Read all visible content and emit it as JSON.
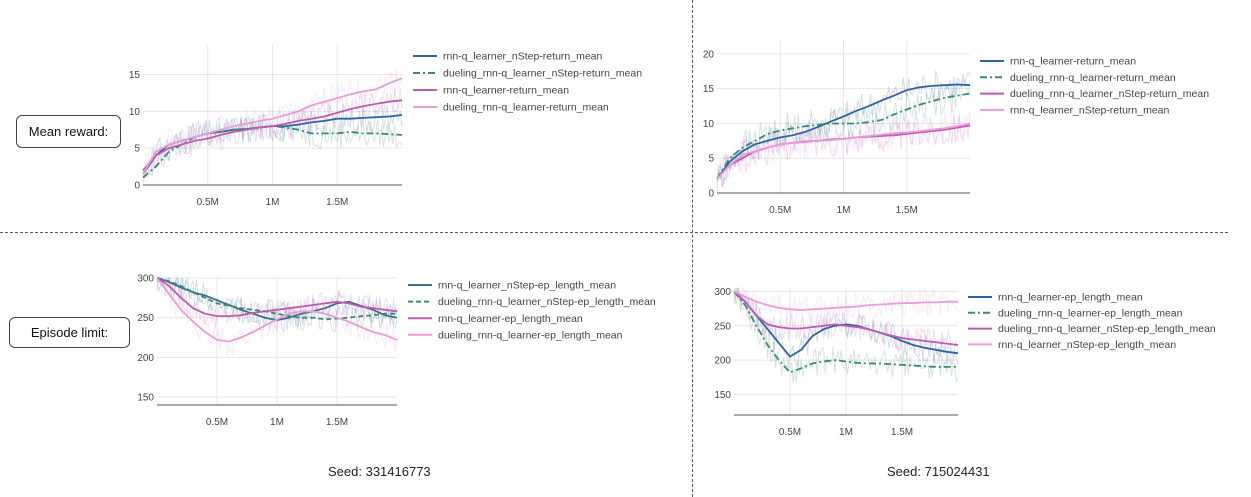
{
  "row_labels": {
    "reward": "Mean reward:",
    "episode": "Episode limit:"
  },
  "seeds": {
    "left": "Seed: 331416773",
    "right": "Seed: 715024431"
  },
  "chart_data": [
    {
      "type": "line",
      "title": "",
      "xlabel": "",
      "ylabel": "",
      "xlim": [
        0,
        2000000
      ],
      "ylim": [
        0,
        19
      ],
      "yticks": [
        0,
        5,
        10,
        15
      ],
      "xticks": [
        500000,
        1000000,
        1500000
      ],
      "xtick_labels": [
        "0.5M",
        "1M",
        "1.5M"
      ],
      "legend_position": "right",
      "series": [
        {
          "name": "rnn-q_learner_nStep-return_mean",
          "color": "#2e64a6",
          "dash": "solid",
          "x": [
            0,
            100000,
            200000,
            300000,
            400000,
            500000,
            600000,
            700000,
            800000,
            900000,
            1000000,
            1100000,
            1200000,
            1300000,
            1400000,
            1500000,
            1600000,
            1700000,
            1800000,
            1900000,
            2000000
          ],
          "y": [
            1.5,
            4,
            5.5,
            6,
            6.5,
            7,
            7.2,
            7.5,
            7.6,
            7.8,
            8,
            8,
            8.2,
            8.5,
            8.7,
            9,
            9,
            9.1,
            9.2,
            9.3,
            9.5
          ]
        },
        {
          "name": "dueling_rnn-q_learner_nStep-return_mean",
          "color": "#3a8a74",
          "dash": "dashdot",
          "x": [
            0,
            100000,
            200000,
            300000,
            400000,
            500000,
            600000,
            700000,
            800000,
            900000,
            1000000,
            1100000,
            1200000,
            1300000,
            1400000,
            1500000,
            1600000,
            1700000,
            1800000,
            1900000,
            2000000
          ],
          "y": [
            1,
            2.5,
            4.5,
            5.5,
            6.5,
            7,
            7.2,
            7.5,
            7.6,
            7.8,
            8,
            7.8,
            7.5,
            7,
            7,
            7,
            7.2,
            7,
            7,
            6.9,
            6.8
          ]
        },
        {
          "name": "rnn-q_learner-return_mean",
          "color": "#c05bb0",
          "dash": "solid",
          "x": [
            0,
            100000,
            200000,
            300000,
            400000,
            500000,
            600000,
            700000,
            800000,
            900000,
            1000000,
            1100000,
            1200000,
            1300000,
            1400000,
            1500000,
            1600000,
            1700000,
            1800000,
            1900000,
            2000000
          ],
          "y": [
            2,
            4,
            5,
            5.5,
            6,
            6.3,
            6.8,
            7.2,
            7.5,
            7.8,
            8,
            8.3,
            8.7,
            9,
            9.3,
            9.8,
            10.3,
            10.7,
            11,
            11.3,
            11.5
          ]
        },
        {
          "name": "dueling_rnn-q_learner-return_mean",
          "color": "#ec9bd9",
          "dash": "solid",
          "x": [
            0,
            100000,
            200000,
            300000,
            400000,
            500000,
            600000,
            700000,
            800000,
            900000,
            1000000,
            1100000,
            1200000,
            1300000,
            1400000,
            1500000,
            1600000,
            1700000,
            1800000,
            1900000,
            2000000
          ],
          "y": [
            1.5,
            4.5,
            5.5,
            6,
            6.5,
            7,
            7.5,
            8,
            8.3,
            8.7,
            9,
            9.5,
            10,
            10.8,
            11.3,
            11.8,
            12.3,
            12.7,
            13,
            13.8,
            14.5
          ]
        }
      ]
    },
    {
      "type": "line",
      "title": "",
      "xlabel": "",
      "ylabel": "",
      "xlim": [
        0,
        2000000
      ],
      "ylim": [
        0,
        22
      ],
      "yticks": [
        0,
        5,
        10,
        15,
        20
      ],
      "xticks": [
        500000,
        1000000,
        1500000
      ],
      "xtick_labels": [
        "0.5M",
        "1M",
        "1.5M"
      ],
      "legend_position": "right",
      "series": [
        {
          "name": "rnn-q_learner-return_mean",
          "color": "#2e64a6",
          "dash": "solid",
          "x": [
            0,
            100000,
            200000,
            300000,
            400000,
            500000,
            600000,
            700000,
            800000,
            900000,
            1000000,
            1100000,
            1200000,
            1300000,
            1400000,
            1500000,
            1600000,
            1700000,
            1800000,
            1900000,
            2000000
          ],
          "y": [
            2,
            4.5,
            6,
            7,
            7.5,
            8,
            8.3,
            8.8,
            9.5,
            10.3,
            11,
            11.8,
            12.5,
            13.3,
            14,
            14.8,
            15.2,
            15.4,
            15.5,
            15.6,
            15.5
          ]
        },
        {
          "name": "dueling_rnn-q_learner-return_mean",
          "color": "#3a8a74",
          "dash": "dashdot",
          "x": [
            0,
            100000,
            200000,
            300000,
            400000,
            500000,
            600000,
            700000,
            800000,
            900000,
            1000000,
            1100000,
            1200000,
            1300000,
            1400000,
            1500000,
            1600000,
            1700000,
            1800000,
            1900000,
            2000000
          ],
          "y": [
            2,
            5,
            6.5,
            7.5,
            8.5,
            9,
            9.3,
            9.6,
            9.8,
            10,
            10,
            10,
            10.2,
            10.5,
            11.3,
            12,
            12.7,
            13.2,
            13.7,
            14,
            14.3
          ]
        },
        {
          "name": "dueling_rnn-q_learner_nStep-return_mean",
          "color": "#c05bb0",
          "dash": "solid",
          "x": [
            0,
            100000,
            200000,
            300000,
            400000,
            500000,
            600000,
            700000,
            800000,
            900000,
            1000000,
            1100000,
            1200000,
            1300000,
            1400000,
            1500000,
            1600000,
            1700000,
            1800000,
            1900000,
            2000000
          ],
          "y": [
            2,
            4,
            5,
            6,
            6.5,
            7,
            7.2,
            7.4,
            7.5,
            7.7,
            7.8,
            8,
            8.1,
            8.2,
            8.3,
            8.5,
            8.7,
            8.9,
            9.1,
            9.4,
            9.7
          ]
        },
        {
          "name": "rnn-q_learner_nStep-return_mean",
          "color": "#ec9bd9",
          "dash": "solid",
          "x": [
            0,
            100000,
            200000,
            300000,
            400000,
            500000,
            600000,
            700000,
            800000,
            900000,
            1000000,
            1100000,
            1200000,
            1300000,
            1400000,
            1500000,
            1600000,
            1700000,
            1800000,
            1900000,
            2000000
          ],
          "y": [
            2,
            4,
            5.5,
            6,
            6.5,
            7,
            7.2,
            7.3,
            7.5,
            7.6,
            7.8,
            8,
            8.2,
            8.4,
            8.6,
            8.7,
            8.9,
            9.1,
            9.3,
            9.6,
            10
          ]
        }
      ]
    },
    {
      "type": "line",
      "title": "",
      "xlabel": "",
      "ylabel": "",
      "xlim": [
        0,
        2000000
      ],
      "ylim": [
        140,
        300
      ],
      "yticks": [
        150,
        200,
        250,
        300
      ],
      "xticks": [
        500000,
        1000000,
        1500000
      ],
      "xtick_labels": [
        "0.5M",
        "1M",
        "1.5M"
      ],
      "legend_position": "right",
      "series": [
        {
          "name": "rnn-q_learner_nStep-ep_length_mean",
          "color": "#3a6f92",
          "dash": "solid",
          "x": [
            0,
            100000,
            200000,
            300000,
            400000,
            500000,
            600000,
            700000,
            800000,
            900000,
            1000000,
            1100000,
            1200000,
            1300000,
            1400000,
            1500000,
            1600000,
            1700000,
            1800000,
            1900000,
            2000000
          ],
          "y": [
            300,
            295,
            288,
            282,
            278,
            272,
            266,
            260,
            255,
            250,
            247,
            250,
            255,
            258,
            262,
            268,
            270,
            265,
            260,
            253,
            250
          ]
        },
        {
          "name": "dueling_rnn-q_learner_nStep-ep_length_mean",
          "color": "#3a8a74",
          "dash": "dash",
          "x": [
            0,
            100000,
            200000,
            300000,
            400000,
            500000,
            600000,
            700000,
            800000,
            900000,
            1000000,
            1100000,
            1200000,
            1300000,
            1400000,
            1500000,
            1600000,
            1700000,
            1800000,
            1900000,
            2000000
          ],
          "y": [
            300,
            296,
            290,
            282,
            275,
            268,
            265,
            262,
            260,
            258,
            255,
            252,
            250,
            250,
            248,
            249,
            250,
            252,
            253,
            255,
            255
          ]
        },
        {
          "name": "rnn-q_learner-ep_length_mean",
          "color": "#c05bb0",
          "dash": "solid",
          "x": [
            0,
            100000,
            200000,
            300000,
            400000,
            500000,
            600000,
            700000,
            800000,
            900000,
            1000000,
            1100000,
            1200000,
            1300000,
            1400000,
            1500000,
            1600000,
            1700000,
            1800000,
            1900000,
            2000000
          ],
          "y": [
            300,
            290,
            275,
            262,
            255,
            252,
            252,
            253,
            256,
            258,
            260,
            262,
            264,
            266,
            268,
            270,
            268,
            264,
            262,
            260,
            258
          ]
        },
        {
          "name": "dueling_rnn-q_learner-ep_length_mean",
          "color": "#ec9bd9",
          "dash": "solid",
          "x": [
            0,
            100000,
            200000,
            300000,
            400000,
            500000,
            600000,
            700000,
            800000,
            900000,
            1000000,
            1100000,
            1200000,
            1300000,
            1400000,
            1500000,
            1600000,
            1700000,
            1800000,
            1900000,
            2000000
          ],
          "y": [
            300,
            280,
            260,
            245,
            232,
            222,
            220,
            225,
            232,
            240,
            248,
            255,
            258,
            258,
            255,
            250,
            245,
            238,
            232,
            228,
            222
          ]
        }
      ]
    },
    {
      "type": "line",
      "title": "",
      "xlabel": "",
      "ylabel": "",
      "xlim": [
        0,
        2000000
      ],
      "ylim": [
        120,
        305
      ],
      "yticks": [
        150,
        200,
        250,
        300
      ],
      "xticks": [
        500000,
        1000000,
        1500000
      ],
      "xtick_labels": [
        "0.5M",
        "1M",
        "1.5M"
      ],
      "legend_position": "right",
      "series": [
        {
          "name": "rnn-q_learner-ep_length_mean",
          "color": "#2e64a6",
          "dash": "solid",
          "x": [
            0,
            100000,
            200000,
            300000,
            400000,
            500000,
            600000,
            700000,
            800000,
            900000,
            1000000,
            1100000,
            1200000,
            1300000,
            1400000,
            1500000,
            1600000,
            1700000,
            1800000,
            1900000,
            2000000
          ],
          "y": [
            300,
            285,
            265,
            245,
            225,
            205,
            215,
            235,
            245,
            250,
            252,
            250,
            245,
            240,
            235,
            228,
            222,
            218,
            215,
            212,
            210
          ]
        },
        {
          "name": "dueling_rnn-q_learner-ep_length_mean",
          "color": "#3a8a74",
          "dash": "dashdot",
          "x": [
            0,
            100000,
            200000,
            300000,
            400000,
            500000,
            600000,
            700000,
            800000,
            900000,
            1000000,
            1100000,
            1200000,
            1300000,
            1400000,
            1500000,
            1600000,
            1700000,
            1800000,
            1900000,
            2000000
          ],
          "y": [
            300,
            280,
            250,
            222,
            200,
            182,
            188,
            195,
            198,
            200,
            198,
            196,
            195,
            195,
            194,
            193,
            192,
            191,
            190,
            190,
            190
          ]
        },
        {
          "name": "dueling_rnn-q_learner_nStep-ep_length_mean",
          "color": "#c05bb0",
          "dash": "solid",
          "x": [
            0,
            100000,
            200000,
            300000,
            400000,
            500000,
            600000,
            700000,
            800000,
            900000,
            1000000,
            1100000,
            1200000,
            1300000,
            1400000,
            1500000,
            1600000,
            1700000,
            1800000,
            1900000,
            2000000
          ],
          "y": [
            300,
            285,
            265,
            252,
            248,
            246,
            246,
            248,
            250,
            252,
            250,
            248,
            245,
            240,
            236,
            232,
            230,
            228,
            226,
            224,
            222
          ]
        },
        {
          "name": "rnn-q_learner_nStep-ep_length_mean",
          "color": "#ec9bd9",
          "dash": "solid",
          "x": [
            0,
            100000,
            200000,
            300000,
            400000,
            500000,
            600000,
            700000,
            800000,
            900000,
            1000000,
            1100000,
            1200000,
            1300000,
            1400000,
            1500000,
            1600000,
            1700000,
            1800000,
            1900000,
            2000000
          ],
          "y": [
            300,
            292,
            285,
            280,
            276,
            274,
            273,
            274,
            275,
            276,
            277,
            278,
            280,
            281,
            282,
            283,
            283,
            284,
            284,
            285,
            285
          ]
        }
      ]
    }
  ]
}
